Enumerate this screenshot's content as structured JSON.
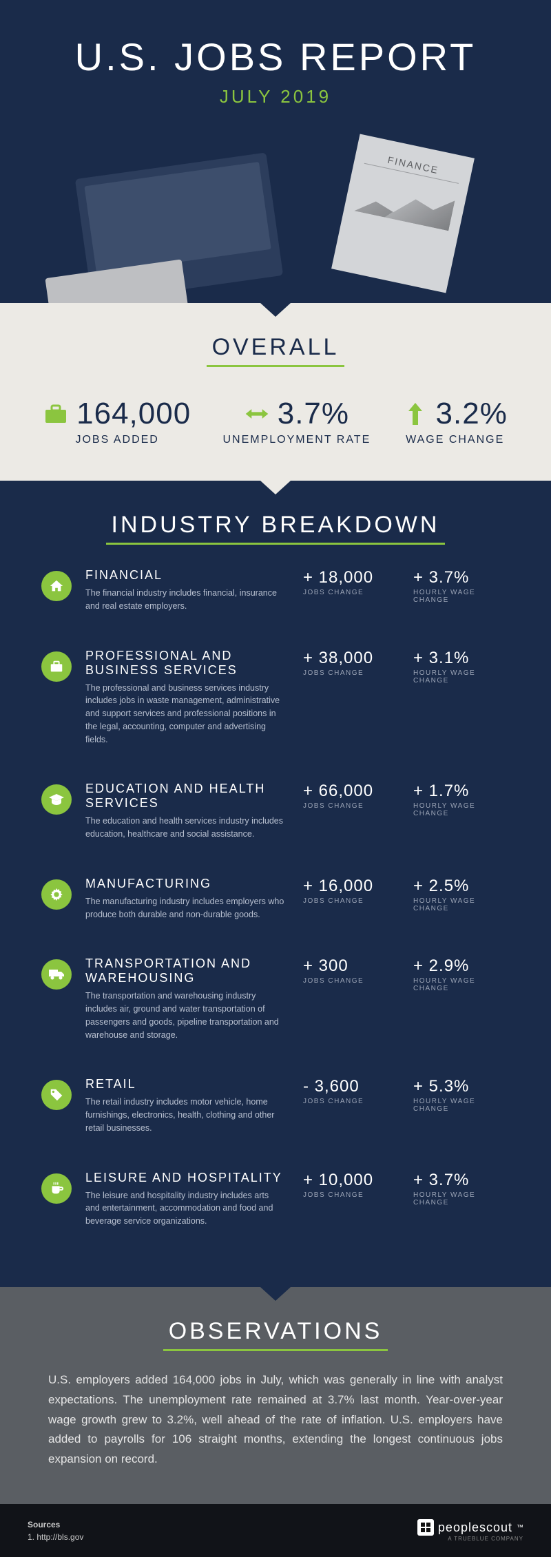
{
  "hero": {
    "title": "U.S. JOBS REPORT",
    "subtitle": "JULY 2019",
    "paper_label": "FINANCE"
  },
  "colors": {
    "bg_dark": "#1a2b4a",
    "bg_light": "#eceae5",
    "bg_gray": "#5a5e63",
    "accent": "#8bc53f",
    "footer": "#111318"
  },
  "overall": {
    "title": "OVERALL",
    "items": [
      {
        "icon": "briefcase",
        "value": "164,000",
        "label": "JOBS ADDED"
      },
      {
        "icon": "arrows-h",
        "value": "3.7%",
        "label": "UNEMPLOYMENT RATE"
      },
      {
        "icon": "arrow-up",
        "value": "3.2%",
        "label": "WAGE CHANGE"
      }
    ]
  },
  "breakdown": {
    "title": "INDUSTRY BREAKDOWN",
    "jobs_label": "JOBS CHANGE",
    "wage_label": "HOURLY WAGE CHANGE",
    "industries": [
      {
        "icon": "house",
        "name": "FINANCIAL",
        "desc": "The financial industry includes financial, insurance and real estate employers.",
        "jobs": "+ 18,000",
        "wage": "+ 3.7%"
      },
      {
        "icon": "briefcase",
        "name": "PROFESSIONAL AND BUSINESS SERVICES",
        "desc": "The professional and business services industry includes jobs in waste management, administrative and support services and professional positions in the legal, accounting, computer and advertising fields.",
        "jobs": "+ 38,000",
        "wage": "+ 3.1%"
      },
      {
        "icon": "grad-cap",
        "name": "EDUCATION AND HEALTH SERVICES",
        "desc": "The education and health services industry includes education, healthcare and social assistance.",
        "jobs": "+ 66,000",
        "wage": "+ 1.7%"
      },
      {
        "icon": "gear",
        "name": "MANUFACTURING",
        "desc": "The manufacturing industry includes employers who produce both durable and non-durable goods.",
        "jobs": "+ 16,000",
        "wage": "+ 2.5%"
      },
      {
        "icon": "truck",
        "name": "TRANSPORTATION AND WAREHOUSING",
        "desc": "The transportation and warehousing industry includes air, ground and water transportation of passengers and goods, pipeline transportation and warehouse and storage.",
        "jobs": "+ 300",
        "wage": "+ 2.9%"
      },
      {
        "icon": "tag",
        "name": "RETAIL",
        "desc": "The retail industry includes motor vehicle, home furnishings, electronics, health, clothing and other retail businesses.",
        "jobs": "- 3,600",
        "wage": "+ 5.3%"
      },
      {
        "icon": "cup",
        "name": "LEISURE AND HOSPITALITY",
        "desc": "The leisure and hospitality industry includes arts and entertainment, accommodation and food and beverage service organizations.",
        "jobs": "+ 10,000",
        "wage": "+ 3.7%"
      }
    ]
  },
  "observations": {
    "title": "OBSERVATIONS",
    "text": "U.S. employers added 164,000 jobs in July, which was generally in line with analyst expectations. The unemployment rate remained at 3.7% last month. Year-over-year wage growth grew to 3.2%, well ahead of the rate of inflation. U.S. employers have added to payrolls for 106 straight months, extending the longest continuous jobs expansion on record."
  },
  "footer": {
    "sources_title": "Sources",
    "sources_line": "1. http://bls.gov",
    "logo_text": "peoplescout",
    "logo_sub": "A TRUEBLUE COMPANY"
  }
}
